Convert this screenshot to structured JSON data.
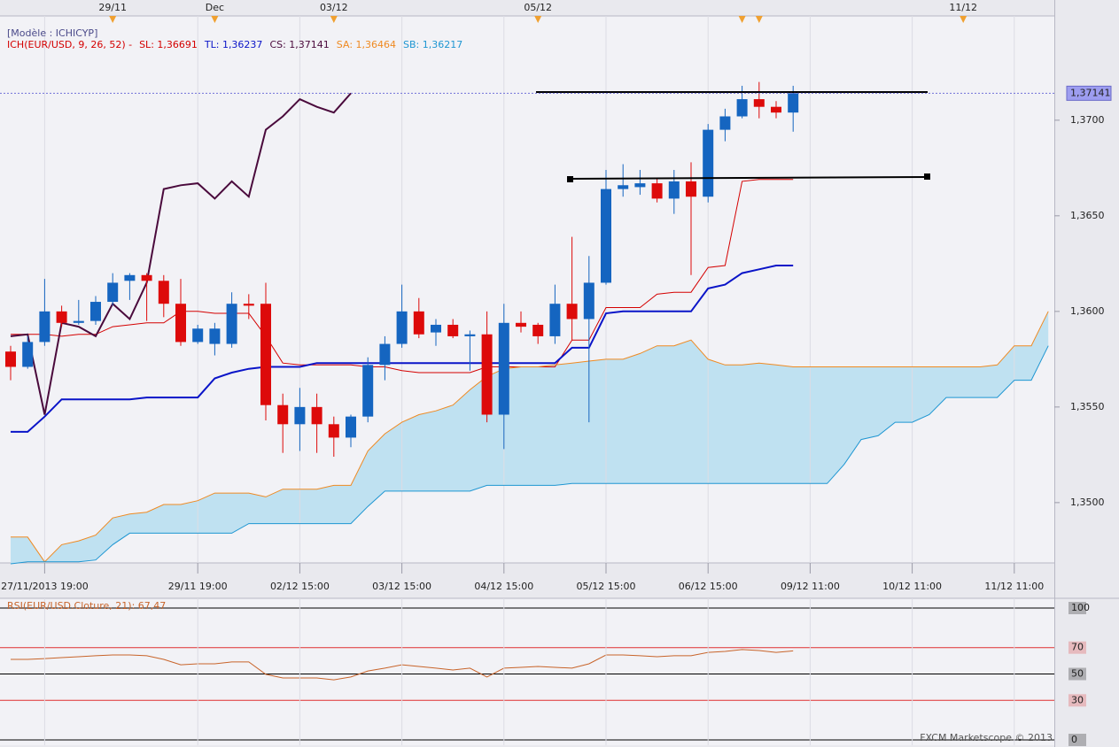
{
  "chart_data": [
    {
      "type": "candlestick",
      "model": "[Modèle : ICHICYP]",
      "indicator": "ICH(EUR/USD, 9, 26, 52) -",
      "indicator_color": "#d40000",
      "footer": "FXCM Marketscope © 2013",
      "categories": [
        null,
        null,
        "27/11/2013 19:00",
        null,
        null,
        null,
        null,
        null,
        null,
        null,
        null,
        "29/11 19:00",
        null,
        null,
        null,
        null,
        null,
        "02/12 15:00",
        null,
        null,
        null,
        null,
        null,
        "03/12 15:00",
        null,
        null,
        null,
        null,
        null,
        "04/12 15:00",
        null,
        null,
        null,
        null,
        null,
        "05/12 15:00",
        null,
        null,
        null,
        null,
        null,
        "06/12 15:00",
        null,
        null,
        null,
        null,
        null,
        "09/12 11:00",
        null,
        null,
        null,
        null,
        null,
        "10/12 11:00",
        null,
        null,
        null,
        null,
        null,
        "11/12 11:00",
        null,
        null
      ],
      "top_categories": [
        null,
        null,
        null,
        null,
        null,
        null,
        "29/11",
        null,
        null,
        null,
        null,
        null,
        "Dec",
        null,
        null,
        null,
        null,
        null,
        null,
        "03/12",
        null,
        null,
        null,
        null,
        null,
        null,
        null,
        null,
        null,
        null,
        null,
        "05/12",
        null,
        null,
        null,
        null,
        null,
        null,
        null,
        null,
        null,
        null,
        null,
        null,
        null,
        null,
        null,
        null,
        null,
        null,
        null,
        null,
        null,
        null,
        null,
        null,
        "11/12",
        null,
        null,
        null,
        null,
        null
      ],
      "open": [
        1.3579,
        1.3571,
        1.3584,
        1.36,
        1.3594,
        1.3595,
        1.3605,
        1.3616,
        1.3619,
        1.3616,
        1.3604,
        1.3584,
        1.3583,
        1.3583,
        1.3604,
        1.3604,
        1.3551,
        1.3541,
        1.355,
        1.3541,
        1.3534,
        1.3545,
        1.3572,
        1.3583,
        1.36,
        1.3589,
        1.3593,
        1.3587,
        1.3588,
        1.3546,
        1.3594,
        1.3593,
        1.3587,
        1.3604,
        1.3596,
        1.3615,
        1.3664,
        1.3665,
        1.3667,
        1.3659,
        1.3668,
        1.366,
        1.3695,
        1.3702,
        1.3711,
        1.3707,
        1.3704,
        null,
        null,
        null,
        null,
        null,
        null,
        null,
        null,
        null,
        null,
        null,
        null,
        null,
        null,
        null
      ],
      "high": [
        1.3582,
        1.3587,
        1.3617,
        1.3603,
        1.3606,
        1.3608,
        1.362,
        1.362,
        1.362,
        1.3619,
        1.3617,
        1.3593,
        1.3594,
        1.361,
        1.3609,
        1.3615,
        1.3557,
        1.356,
        1.3557,
        1.3545,
        1.3546,
        1.3576,
        1.3587,
        1.3614,
        1.3607,
        1.3596,
        1.3596,
        1.359,
        1.36,
        1.3604,
        1.36,
        1.3594,
        1.3614,
        1.3639,
        1.3629,
        1.3674,
        1.3677,
        1.3674,
        1.367,
        1.3674,
        1.3678,
        1.3698,
        1.3706,
        1.3718,
        1.372,
        1.371,
        1.3718,
        null,
        null,
        null,
        null,
        null,
        null,
        null,
        null,
        null,
        null,
        null,
        null,
        null,
        null,
        null
      ],
      "low": [
        1.3564,
        1.357,
        1.3582,
        1.3592,
        1.3593,
        1.3593,
        1.3603,
        1.3606,
        1.3595,
        1.3597,
        1.3582,
        1.3583,
        1.3577,
        1.3581,
        1.3596,
        1.3543,
        1.3526,
        1.3527,
        1.3526,
        1.3524,
        1.3529,
        1.3542,
        1.3564,
        1.3581,
        1.3586,
        1.3582,
        1.3586,
        1.3569,
        1.3542,
        1.3528,
        1.3589,
        1.3583,
        1.3583,
        1.3585,
        1.3542,
        1.3614,
        1.366,
        1.3661,
        1.3657,
        1.3651,
        1.3619,
        1.3657,
        1.3689,
        1.3701,
        1.3701,
        1.3701,
        1.3694,
        null,
        null,
        null,
        null,
        null,
        null,
        null,
        null,
        null,
        null,
        null,
        null,
        null,
        null,
        null
      ],
      "close": [
        1.3571,
        1.3584,
        1.36,
        1.3594,
        1.3595,
        1.3605,
        1.3615,
        1.3619,
        1.3616,
        1.3604,
        1.3584,
        1.3591,
        1.3591,
        1.3604,
        1.3603,
        1.3551,
        1.3541,
        1.355,
        1.3541,
        1.3534,
        1.3545,
        1.3572,
        1.3583,
        1.36,
        1.3588,
        1.3593,
        1.3587,
        1.3588,
        1.3546,
        1.3594,
        1.3592,
        1.3587,
        1.3604,
        1.3596,
        1.3615,
        1.3664,
        1.3666,
        1.3667,
        1.3659,
        1.3668,
        1.366,
        1.3695,
        1.3702,
        1.3711,
        1.3707,
        1.3704,
        1.37141,
        null,
        null,
        null,
        null,
        null,
        null,
        null,
        null,
        null,
        null,
        null,
        null,
        null,
        null,
        null
      ],
      "up_color": "#1565c0",
      "down_color": "#dd0a0a",
      "series": [
        {
          "name": "SL: 1,36691",
          "color": "#d40000",
          "width": 1,
          "values": [
            1.3588,
            1.3588,
            1.3588,
            1.3587,
            1.3588,
            1.3588,
            1.3592,
            1.3593,
            1.3594,
            1.3594,
            1.36,
            1.36,
            1.3599,
            1.3599,
            1.3599,
            1.3587,
            1.3573,
            1.3572,
            1.3572,
            1.3572,
            1.3572,
            1.3571,
            1.3571,
            1.3569,
            1.3568,
            1.3568,
            1.3568,
            1.3568,
            1.3571,
            1.3571,
            1.3571,
            1.3571,
            1.3571,
            1.3585,
            1.3585,
            1.3602,
            1.3602,
            1.3602,
            1.3609,
            1.361,
            1.361,
            1.3623,
            1.3624,
            1.3668,
            1.3669,
            1.3669,
            1.3669,
            null,
            null,
            null,
            null,
            null,
            null,
            null,
            null,
            null,
            null,
            null,
            null,
            null,
            null,
            null
          ]
        },
        {
          "name": "TL: 1,36237",
          "color": "#0a14c8",
          "width": 2,
          "values": [
            1.3537,
            1.3537,
            1.3545,
            1.3554,
            1.3554,
            1.3554,
            1.3554,
            1.3554,
            1.3555,
            1.3555,
            1.3555,
            1.3555,
            1.3565,
            1.3568,
            1.357,
            1.3571,
            1.3571,
            1.3571,
            1.3573,
            1.3573,
            1.3573,
            1.3573,
            1.3573,
            1.3573,
            1.3573,
            1.3573,
            1.3573,
            1.3573,
            1.3573,
            1.3573,
            1.3573,
            1.3573,
            1.3573,
            1.3581,
            1.3581,
            1.3599,
            1.36,
            1.36,
            1.36,
            1.36,
            1.36,
            1.3612,
            1.3614,
            1.362,
            1.3622,
            1.3624,
            1.3624,
            null,
            null,
            null,
            null,
            null,
            null,
            null,
            null,
            null,
            null,
            null,
            null,
            null,
            null,
            null
          ]
        },
        {
          "name": "CS: 1,37141",
          "color": "#4a0a3c",
          "width": 2,
          "values": [
            1.3587,
            1.3588,
            1.3546,
            1.3594,
            1.3592,
            1.3587,
            1.3604,
            1.3596,
            1.3615,
            1.3664,
            1.3666,
            1.3667,
            1.3659,
            1.3668,
            1.366,
            1.3695,
            1.3702,
            1.3711,
            1.3707,
            1.3704,
            1.37141,
            null,
            null,
            null,
            null,
            null,
            null,
            null,
            null,
            null,
            null,
            null,
            null,
            null,
            null,
            null,
            null,
            null,
            null,
            null,
            null,
            null,
            null,
            null,
            null,
            null,
            null,
            null,
            null,
            null,
            null,
            null,
            null,
            null,
            null,
            null,
            null,
            null,
            null,
            null,
            null,
            null
          ]
        },
        {
          "name": "SA: 1,36464",
          "color": "#ef8a22",
          "width": 1,
          "values": [
            1.3482,
            1.3482,
            1.3469,
            1.3478,
            1.348,
            1.3483,
            1.3492,
            1.3494,
            1.3495,
            1.3499,
            1.3499,
            1.3501,
            1.3505,
            1.3505,
            1.3505,
            1.3503,
            1.3507,
            1.3507,
            1.3507,
            1.3509,
            1.3509,
            1.3527,
            1.3536,
            1.3542,
            1.3546,
            1.3548,
            1.3551,
            1.3559,
            1.3566,
            1.357,
            1.3571,
            1.3571,
            1.3572,
            1.3573,
            1.3574,
            1.3575,
            1.3575,
            1.3578,
            1.3582,
            1.3582,
            1.3585,
            1.3575,
            1.3572,
            1.3572,
            1.3573,
            1.3572,
            1.3571,
            1.3571,
            1.3571,
            1.3571,
            1.3571,
            1.3571,
            1.3571,
            1.3571,
            1.3571,
            1.3571,
            1.3571,
            1.3571,
            1.3572,
            1.3582,
            1.3582,
            1.36
          ]
        },
        {
          "name": "SB: 1,36217",
          "color": "#1e96d2",
          "width": 1,
          "values": [
            1.3468,
            1.3469,
            1.3469,
            1.3469,
            1.3469,
            1.347,
            1.3478,
            1.3484,
            1.3484,
            1.3484,
            1.3484,
            1.3484,
            1.3484,
            1.3484,
            1.3489,
            1.3489,
            1.3489,
            1.3489,
            1.3489,
            1.3489,
            1.3489,
            1.3498,
            1.3506,
            1.3506,
            1.3506,
            1.3506,
            1.3506,
            1.3506,
            1.3509,
            1.3509,
            1.3509,
            1.3509,
            1.3509,
            1.351,
            1.351,
            1.351,
            1.351,
            1.351,
            1.351,
            1.351,
            1.351,
            1.351,
            1.351,
            1.351,
            1.351,
            1.351,
            1.351,
            1.351,
            1.351,
            1.352,
            1.3533,
            1.3535,
            1.3542,
            1.3542,
            1.3546,
            1.3555,
            1.3555,
            1.3555,
            1.3555,
            1.3564,
            1.3564,
            1.3582
          ]
        }
      ],
      "cloud_color": "#bfe1f1",
      "last_price": {
        "value": 1.37141,
        "label": "1,37141"
      },
      "ylim": [
        1.3468,
        1.3755
      ],
      "yticks": [
        {
          "value": 1.37,
          "label": "1,3700"
        },
        {
          "value": 1.365,
          "label": "1,3650"
        },
        {
          "value": 1.36,
          "label": "1,3600"
        },
        {
          "value": 1.355,
          "label": "1,3550"
        },
        {
          "value": 1.35,
          "label": "1,3500"
        }
      ]
    },
    {
      "type": "line",
      "title": "RSI(EUR/USD.Cloture, 21): 67,47",
      "color": "#c8642a",
      "values": [
        61.1,
        61.1,
        61.7,
        62.4,
        63.1,
        63.8,
        64.4,
        64.4,
        63.8,
        61.1,
        57.0,
        57.7,
        57.7,
        59.1,
        59.1,
        49.7,
        47.0,
        47.0,
        47.0,
        45.6,
        47.7,
        52.3,
        54.4,
        57.0,
        55.7,
        54.4,
        53.0,
        54.4,
        47.7,
        54.4,
        55.0,
        55.7,
        55.0,
        54.4,
        57.7,
        64.4,
        64.4,
        63.8,
        63.1,
        63.8,
        63.8,
        66.4,
        67.1,
        68.5,
        67.8,
        66.4,
        67.5,
        null,
        null,
        null,
        null,
        null,
        null,
        null,
        null,
        null,
        null,
        null,
        null,
        null,
        null,
        null
      ],
      "ylim": [
        0,
        100
      ],
      "yticks": [
        100,
        70,
        50,
        30,
        0
      ],
      "ytick_colors": [
        "#000000",
        "#e03030",
        "#000000",
        "#e03030",
        "#000000"
      ]
    }
  ]
}
